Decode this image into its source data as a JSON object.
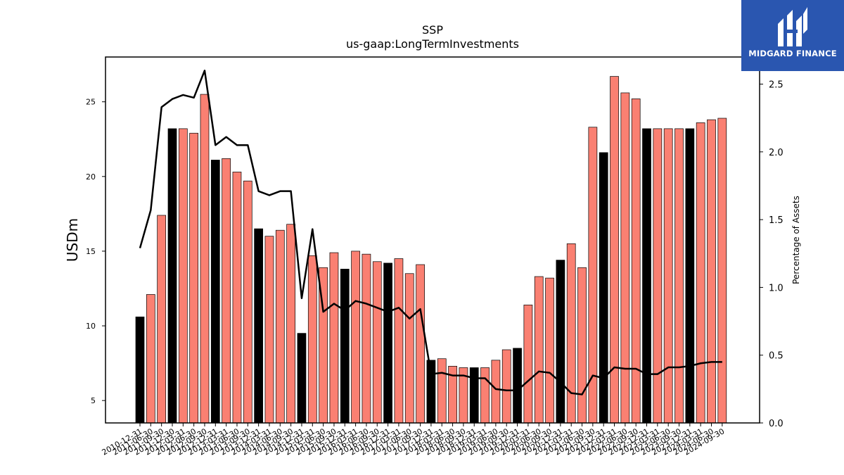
{
  "brand": {
    "name": "MIDGARD FINANCE",
    "bg_color": "#2a56b0"
  },
  "chart_data": {
    "type": "bar",
    "title": "SSP",
    "subtitle": "us-gaap:LongTermInvestments",
    "ylabel": "USDm",
    "y2label": "Percentage of Assets",
    "ylim": [
      3.5,
      28
    ],
    "y2lim": [
      0,
      2.7
    ],
    "yticks": [
      5,
      10,
      15,
      20,
      25
    ],
    "y2ticks": [
      "0.0",
      "0.5",
      "1.0",
      "1.5",
      "2.0",
      "2.5"
    ],
    "colors": {
      "annual": "#000000",
      "quarter": "#fa8072",
      "line": "#000000"
    },
    "categories": [
      "2010-12-31",
      "2011-06-30",
      "2011-09-30",
      "2011-12-30",
      "2012-03-31",
      "2012-06-30",
      "2012-09-30",
      "2012-12-31",
      "2013-03-31",
      "2013-06-30",
      "2013-09-30",
      "2013-12-31",
      "2014-03-31",
      "2014-06-30",
      "2014-09-30",
      "2014-12-31",
      "2015-03-31",
      "2015-06-30",
      "2015-09-30",
      "2015-12-31",
      "2016-03-31",
      "2016-06-30",
      "2016-09-30",
      "2016-12-31",
      "2017-03-31",
      "2017-06-30",
      "2017-09-30",
      "2017-12-31",
      "2018-03-31",
      "2018-06-30",
      "2018-09-30",
      "2018-12-31",
      "2019-03-31",
      "2019-06-30",
      "2019-09-30",
      "2019-12-31",
      "2020-03-31",
      "2020-06-30",
      "2020-09-30",
      "2020-12-31",
      "2021-03-31",
      "2021-06-30",
      "2021-09-30",
      "2021-12-31",
      "2022-03-31",
      "2022-06-30",
      "2022-09-30",
      "2022-12-31",
      "2023-03-31",
      "2023-06-30",
      "2023-09-30",
      "2023-12-31",
      "2024-03-31",
      "2024-06-30",
      "2024-09-30"
    ],
    "annual_flags": [
      1,
      0,
      0,
      1,
      0,
      0,
      0,
      1,
      0,
      0,
      0,
      1,
      0,
      0,
      0,
      1,
      0,
      0,
      0,
      1,
      0,
      0,
      0,
      1,
      0,
      0,
      0,
      1,
      0,
      0,
      0,
      1,
      0,
      0,
      0,
      1,
      0,
      0,
      0,
      1,
      0,
      0,
      0,
      1,
      0,
      0,
      0,
      1,
      0,
      0,
      0,
      1,
      0,
      0,
      0
    ],
    "series": [
      {
        "type": "bar",
        "axis": "left",
        "values": [
          10.6,
          12.1,
          17.4,
          23.2,
          23.2,
          22.9,
          25.5,
          21.1,
          21.2,
          20.3,
          19.7,
          16.5,
          16.0,
          16.4,
          16.8,
          9.5,
          14.7,
          13.9,
          14.9,
          13.8,
          15.0,
          14.8,
          14.3,
          14.2,
          14.5,
          13.5,
          14.1,
          7.7,
          7.8,
          7.3,
          7.2,
          7.2,
          7.2,
          7.7,
          8.4,
          8.5,
          11.4,
          13.3,
          13.2,
          14.4,
          15.5,
          13.9,
          23.3,
          21.6,
          26.7,
          25.6,
          25.2,
          23.2,
          23.2,
          23.2,
          23.2,
          23.2,
          23.6,
          23.8,
          23.9
        ]
      },
      {
        "type": "line",
        "axis": "right",
        "values": [
          1.29,
          1.57,
          2.33,
          2.39,
          2.42,
          2.4,
          2.6,
          2.05,
          2.11,
          2.05,
          2.05,
          1.71,
          1.68,
          1.71,
          1.71,
          0.92,
          1.43,
          0.82,
          0.88,
          0.83,
          0.9,
          0.88,
          0.85,
          0.82,
          0.85,
          0.77,
          0.84,
          0.36,
          0.37,
          0.35,
          0.35,
          0.33,
          0.33,
          0.25,
          0.24,
          0.24,
          0.31,
          0.38,
          0.37,
          0.3,
          0.22,
          0.21,
          0.35,
          0.33,
          0.41,
          0.4,
          0.4,
          0.36,
          0.36,
          0.41,
          0.41,
          0.42,
          0.44,
          0.45,
          0.45
        ]
      }
    ]
  }
}
